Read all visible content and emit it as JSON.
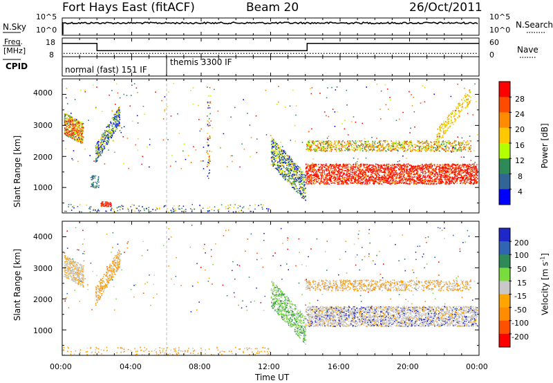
{
  "header": {
    "station": "Fort Hays East (fitACF)",
    "beam": "Beam 20",
    "date": "26/Oct/2011"
  },
  "noise_panel": {
    "left_label": "N.Sky",
    "left_ticks": [
      "10^5",
      "10^0"
    ],
    "right_label": "N.Search",
    "right_ticks": [
      "10^5",
      "10^0"
    ]
  },
  "freq_panel": {
    "left_label_top": "Freq.",
    "left_label_bottom": "[MHz]",
    "left_ticks": [
      "18",
      "8"
    ],
    "right_label": "Nave",
    "right_ticks": [
      "60",
      "0"
    ],
    "cpid_label": "CPID",
    "freq_steps": [
      {
        "from_h": 0,
        "to_h": 2,
        "mhz": 16
      },
      {
        "from_h": 2,
        "to_h": 14.1,
        "mhz": 10.5
      },
      {
        "from_h": 14.1,
        "to_h": 24,
        "mhz": 16
      }
    ],
    "nave_level": 0.25
  },
  "cpid_panel": {
    "modes": [
      {
        "label": "normal (fast) 151 IF",
        "from_h": 0
      },
      {
        "label": "themis 3300 IF",
        "from_h": 6
      }
    ]
  },
  "chart_data": [
    {
      "type": "heatmap",
      "title": "Power",
      "ylabel": "Slant Range [km]",
      "xlabel": "Time UT",
      "x_range_hours": [
        0,
        24
      ],
      "y_range_km": [
        180,
        4500
      ],
      "y_ticks": [
        "4000",
        "3000",
        "2000",
        "1000"
      ],
      "y_tick_values": [
        4000,
        3000,
        2000,
        1000
      ],
      "colorbar": {
        "label": "Power [dB]",
        "ticks": [
          "28",
          "24",
          "20",
          "16",
          "12",
          "8",
          "4"
        ],
        "colors": [
          "#ff0000",
          "#ff4b00",
          "#ff8c00",
          "#ffc800",
          "#b4ff00",
          "#2e8b57",
          "#326496",
          "#0000ff"
        ]
      }
    },
    {
      "type": "heatmap",
      "title": "Velocity",
      "ylabel": "Slant Range [km]",
      "xlabel": "Time UT",
      "x_range_hours": [
        0,
        24
      ],
      "y_range_km": [
        180,
        4500
      ],
      "y_ticks": [
        "4000",
        "3000",
        "2000",
        "1000"
      ],
      "y_tick_values": [
        4000,
        3000,
        2000,
        1000
      ],
      "colorbar": {
        "label": "Velocity [m s",
        "label_sup": "-1",
        "ticks": [
          "200",
          "100",
          "50",
          "15",
          "-15",
          "-50",
          "-100",
          "-200"
        ],
        "colors": [
          "#1e28c8",
          "#3264b4",
          "#2e8b57",
          "#78dc3c",
          "#c8c8c8",
          "#ffa500",
          "#ff8c00",
          "#ff5000",
          "#ff0000"
        ]
      }
    }
  ],
  "x_axis": {
    "ticks": [
      "00:00",
      "04:00",
      "08:00",
      "12:00",
      "16:00",
      "20:00",
      "00:00"
    ],
    "label": "Time UT"
  }
}
